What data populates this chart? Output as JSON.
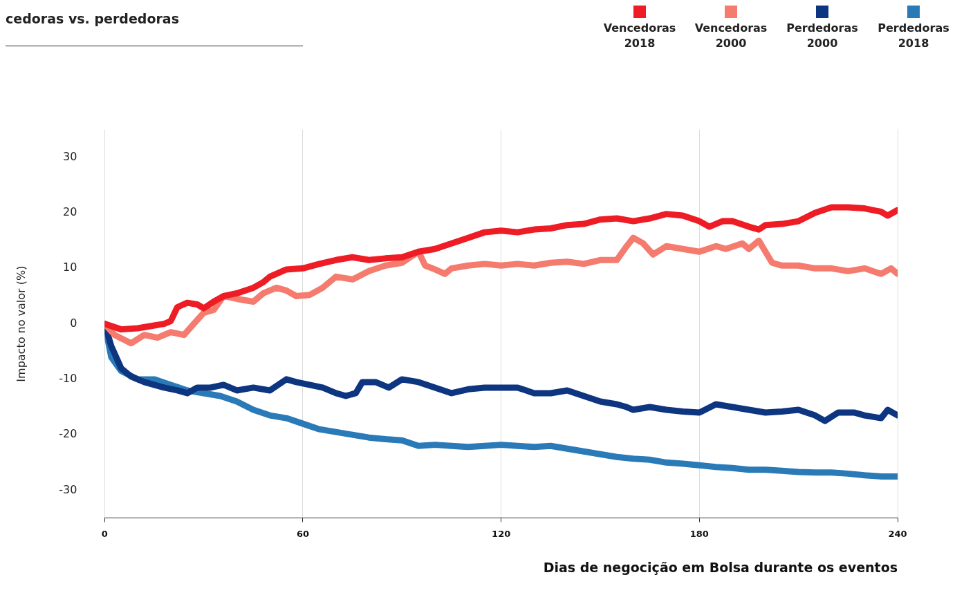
{
  "chart_data": {
    "type": "line",
    "title": "cedoras vs. perdedoras",
    "xlabel": "Dias de negocição em Bolsa durante os eventos",
    "ylabel": "Impacto no valor (%)",
    "xlim": [
      0,
      240
    ],
    "xticks": [
      0,
      60,
      120,
      180,
      240
    ],
    "ylim": [
      -35,
      35
    ],
    "yticks": [
      -30,
      -20,
      -10,
      0,
      10,
      20,
      30
    ],
    "grid": "x",
    "legend": "top right",
    "marker": "none",
    "line_style": "solid",
    "series": [
      {
        "name": "Vencedoras 2018",
        "color": "#ee1c25",
        "x": [
          0,
          5,
          10,
          15,
          18,
          20,
          22,
          25,
          28,
          30,
          33,
          36,
          40,
          45,
          48,
          50,
          55,
          60,
          65,
          70,
          75,
          80,
          85,
          90,
          95,
          100,
          105,
          110,
          115,
          120,
          125,
          130,
          135,
          140,
          145,
          150,
          155,
          160,
          165,
          170,
          175,
          180,
          183,
          187,
          190,
          195,
          198,
          200,
          205,
          210,
          215,
          220,
          225,
          230,
          235,
          237,
          240
        ],
        "values": [
          0,
          -1,
          -0.8,
          -0.3,
          0,
          0.5,
          3,
          3.8,
          3.5,
          2.8,
          4,
          5,
          5.5,
          6.5,
          7.5,
          8.5,
          9.8,
          10,
          10.8,
          11.5,
          12,
          11.5,
          11.8,
          12,
          13,
          13.5,
          14.5,
          15.5,
          16.5,
          16.8,
          16.5,
          17,
          17.2,
          17.8,
          18,
          18.8,
          19,
          18.5,
          19,
          19.8,
          19.5,
          18.5,
          17.5,
          18.5,
          18.5,
          17.5,
          17,
          17.8,
          18,
          18.5,
          20,
          21,
          21,
          20.8,
          20.2,
          19.5,
          20.5
        ]
      },
      {
        "name": "Vencedoras 2000",
        "color": "#f47b6e",
        "x": [
          0,
          3,
          8,
          12,
          16,
          20,
          24,
          27,
          30,
          33,
          36,
          40,
          45,
          48,
          52,
          55,
          58,
          62,
          66,
          70,
          75,
          80,
          85,
          90,
          92,
          95,
          97,
          100,
          103,
          105,
          110,
          115,
          120,
          125,
          130,
          135,
          140,
          145,
          150,
          155,
          158,
          160,
          163,
          166,
          170,
          175,
          180,
          185,
          188,
          193,
          195,
          198,
          200,
          202,
          205,
          210,
          215,
          220,
          225,
          230,
          235,
          238,
          240
        ],
        "values": [
          0,
          -2,
          -3.5,
          -2,
          -2.5,
          -1.5,
          -2,
          0,
          2,
          2.5,
          5,
          4.5,
          4,
          5.5,
          6.5,
          6,
          5,
          5.2,
          6.5,
          8.5,
          8,
          9.5,
          10.5,
          11,
          11.8,
          13,
          10.5,
          9.8,
          9,
          10,
          10.5,
          10.8,
          10.5,
          10.8,
          10.5,
          11,
          11.2,
          10.8,
          11.5,
          11.5,
          14,
          15.5,
          14.5,
          12.5,
          14,
          13.5,
          13,
          14,
          13.5,
          14.5,
          13.5,
          15,
          13,
          11,
          10.5,
          10.5,
          10,
          10,
          9.5,
          10,
          9,
          10,
          9
        ]
      },
      {
        "name": "Perdedoras 2000",
        "color": "#0d3580",
        "x": [
          0,
          2,
          5,
          8,
          12,
          15,
          18,
          22,
          25,
          28,
          32,
          36,
          40,
          45,
          50,
          55,
          58,
          62,
          66,
          70,
          73,
          76,
          78,
          82,
          86,
          90,
          95,
          100,
          105,
          110,
          115,
          120,
          125,
          130,
          135,
          140,
          145,
          150,
          155,
          158,
          160,
          165,
          170,
          175,
          180,
          185,
          190,
          195,
          200,
          205,
          210,
          215,
          218,
          222,
          227,
          230,
          235,
          237,
          240
        ],
        "values": [
          0,
          -4,
          -8,
          -9.5,
          -10.5,
          -11,
          -11.5,
          -12,
          -12.5,
          -11.5,
          -11.5,
          -11,
          -12,
          -11.5,
          -12,
          -10,
          -10.5,
          -11,
          -11.5,
          -12.5,
          -13,
          -12.5,
          -10.5,
          -10.5,
          -11.5,
          -10,
          -10.5,
          -11.5,
          -12.5,
          -11.8,
          -11.5,
          -11.5,
          -11.5,
          -12.5,
          -12.5,
          -12,
          -13,
          -14,
          -14.5,
          -15,
          -15.5,
          -15,
          -15.5,
          -15.8,
          -16,
          -14.5,
          -15,
          -15.5,
          -16,
          -15.8,
          -15.5,
          -16.5,
          -17.5,
          -16,
          -16,
          -16.5,
          -17,
          -15.5,
          -16.5
        ]
      },
      {
        "name": "Perdedoras 2018",
        "color": "#2a7ab8",
        "x": [
          0,
          2,
          5,
          10,
          15,
          20,
          25,
          30,
          35,
          40,
          45,
          50,
          55,
          60,
          65,
          70,
          75,
          80,
          85,
          90,
          95,
          100,
          105,
          110,
          115,
          120,
          125,
          130,
          135,
          140,
          145,
          150,
          155,
          160,
          165,
          170,
          175,
          180,
          185,
          190,
          195,
          200,
          205,
          210,
          215,
          220,
          225,
          230,
          235,
          240
        ],
        "values": [
          0,
          -6,
          -8.5,
          -10,
          -10,
          -11,
          -12,
          -12.5,
          -13,
          -14,
          -15.5,
          -16.5,
          -17,
          -18,
          -19,
          -19.5,
          -20,
          -20.5,
          -20.8,
          -21,
          -22,
          -21.8,
          -22,
          -22.2,
          -22,
          -21.8,
          -22,
          -22.2,
          -22,
          -22.5,
          -23,
          -23.5,
          -24,
          -24.3,
          -24.5,
          -25,
          -25.2,
          -25.5,
          -25.8,
          -26,
          -26.3,
          -26.3,
          -26.5,
          -26.7,
          -26.8,
          -26.8,
          -27,
          -27.3,
          -27.5,
          -27.5
        ]
      }
    ]
  }
}
